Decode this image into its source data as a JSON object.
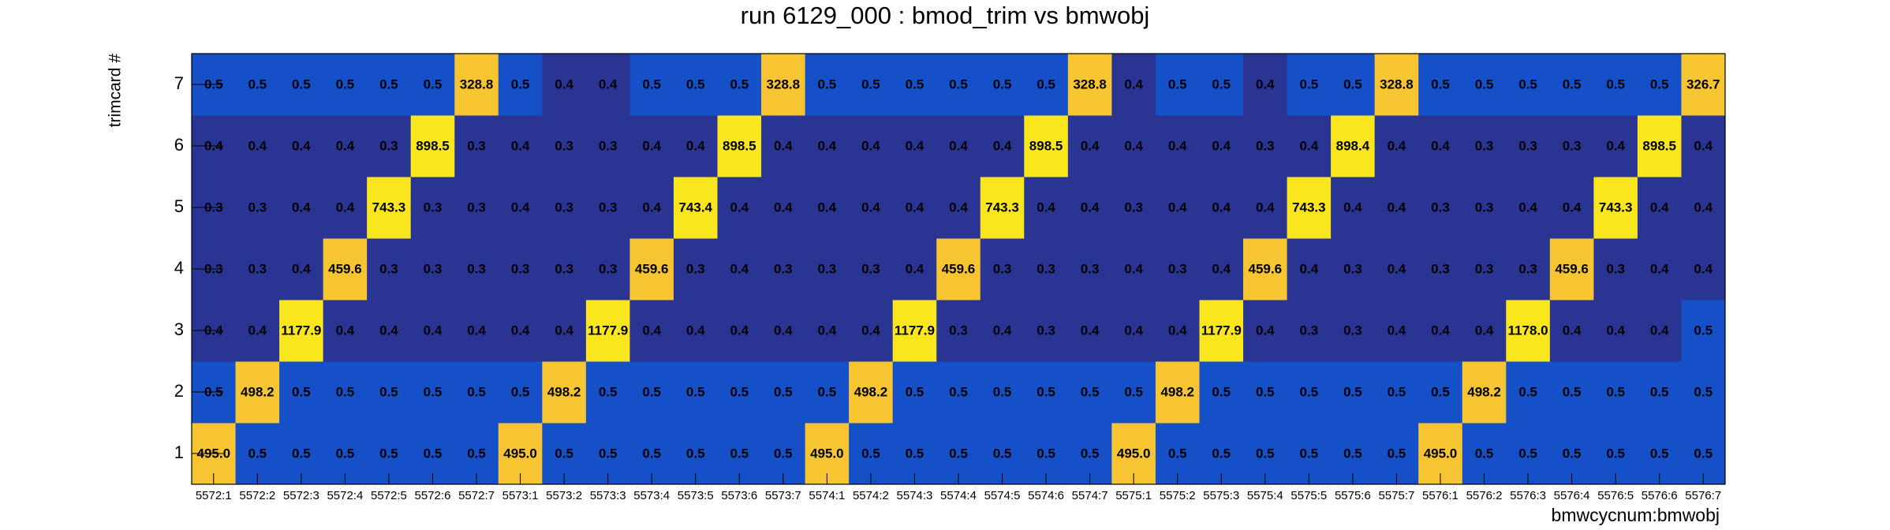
{
  "chart_data": {
    "type": "heatmap",
    "title": "run 6129_000 : bmod_trim vs bmwobj",
    "x_label": "bmwcycnum:bmwobj",
    "y_label": "trimcard #",
    "x_categories": [
      "5572:1",
      "5572:2",
      "5572:3",
      "5572:4",
      "5572:5",
      "5572:6",
      "5572:7",
      "5573:1",
      "5573:2",
      "5573:3",
      "5573:4",
      "5573:5",
      "5573:6",
      "5573:7",
      "5574:1",
      "5574:2",
      "5574:3",
      "5574:4",
      "5574:5",
      "5574:6",
      "5574:7",
      "5575:1",
      "5575:2",
      "5575:3",
      "5575:4",
      "5575:5",
      "5575:6",
      "5575:7",
      "5576:1",
      "5576:2",
      "5576:3",
      "5576:4",
      "5576:5",
      "5576:6",
      "5576:7"
    ],
    "y_categories": [
      "1",
      "2",
      "3",
      "4",
      "5",
      "6",
      "7"
    ],
    "values": [
      [
        495.0,
        0.5,
        0.5,
        0.5,
        0.5,
        0.5,
        0.5,
        495.0,
        0.5,
        0.5,
        0.5,
        0.5,
        0.5,
        0.5,
        495.0,
        0.5,
        0.5,
        0.5,
        0.5,
        0.5,
        0.5,
        495.0,
        0.5,
        0.5,
        0.5,
        0.5,
        0.5,
        0.5,
        495.0,
        0.5,
        0.5,
        0.5,
        0.5,
        0.5,
        0.5
      ],
      [
        0.5,
        498.2,
        0.5,
        0.5,
        0.5,
        0.5,
        0.5,
        0.5,
        498.2,
        0.5,
        0.5,
        0.5,
        0.5,
        0.5,
        0.5,
        498.2,
        0.5,
        0.5,
        0.5,
        0.5,
        0.5,
        0.5,
        498.2,
        0.5,
        0.5,
        0.5,
        0.5,
        0.5,
        0.5,
        498.2,
        0.5,
        0.5,
        0.5,
        0.5,
        0.5
      ],
      [
        0.4,
        0.4,
        1177.9,
        0.4,
        0.4,
        0.4,
        0.4,
        0.4,
        0.4,
        1177.9,
        0.4,
        0.4,
        0.4,
        0.4,
        0.4,
        0.4,
        1177.9,
        0.3,
        0.4,
        0.3,
        0.4,
        0.4,
        0.4,
        1177.9,
        0.4,
        0.3,
        0.3,
        0.4,
        0.4,
        0.4,
        1178.0,
        0.4,
        0.4,
        0.4,
        0.5
      ],
      [
        0.3,
        0.3,
        0.4,
        459.6,
        0.3,
        0.3,
        0.3,
        0.3,
        0.3,
        0.3,
        459.6,
        0.3,
        0.4,
        0.3,
        0.3,
        0.3,
        0.4,
        459.6,
        0.3,
        0.3,
        0.3,
        0.4,
        0.3,
        0.4,
        459.6,
        0.4,
        0.3,
        0.4,
        0.3,
        0.3,
        0.3,
        459.6,
        0.3,
        0.4,
        0.4
      ],
      [
        0.3,
        0.3,
        0.4,
        0.4,
        743.3,
        0.3,
        0.3,
        0.4,
        0.3,
        0.3,
        0.4,
        743.4,
        0.4,
        0.4,
        0.4,
        0.4,
        0.4,
        0.4,
        743.3,
        0.4,
        0.4,
        0.3,
        0.4,
        0.4,
        0.4,
        743.3,
        0.4,
        0.4,
        0.3,
        0.3,
        0.4,
        0.4,
        743.3,
        0.4,
        0.4
      ],
      [
        0.4,
        0.4,
        0.4,
        0.4,
        0.3,
        898.5,
        0.3,
        0.4,
        0.3,
        0.3,
        0.4,
        0.4,
        898.5,
        0.4,
        0.4,
        0.4,
        0.4,
        0.4,
        0.4,
        898.5,
        0.4,
        0.4,
        0.4,
        0.4,
        0.3,
        0.4,
        898.4,
        0.4,
        0.4,
        0.3,
        0.3,
        0.3,
        0.4,
        898.5,
        0.4
      ],
      [
        0.5,
        0.5,
        0.5,
        0.5,
        0.5,
        0.5,
        328.8,
        0.5,
        0.4,
        0.4,
        0.5,
        0.5,
        0.5,
        328.8,
        0.5,
        0.5,
        0.5,
        0.5,
        0.5,
        0.5,
        328.8,
        0.4,
        0.5,
        0.5,
        0.4,
        0.5,
        0.5,
        328.8,
        0.5,
        0.5,
        0.5,
        0.5,
        0.5,
        0.5,
        326.7
      ]
    ],
    "value_labels": [
      [
        "495.0",
        "0.5",
        "0.5",
        "0.5",
        "0.5",
        "0.5",
        "0.5",
        "495.0",
        "0.5",
        "0.5",
        "0.5",
        "0.5",
        "0.5",
        "0.5",
        "495.0",
        "0.5",
        "0.5",
        "0.5",
        "0.5",
        "0.5",
        "0.5",
        "495.0",
        "0.5",
        "0.5",
        "0.5",
        "0.5",
        "0.5",
        "0.5",
        "495.0",
        "0.5",
        "0.5",
        "0.5",
        "0.5",
        "0.5",
        "0.5"
      ],
      [
        "0.5",
        "498.2",
        "0.5",
        "0.5",
        "0.5",
        "0.5",
        "0.5",
        "0.5",
        "498.2",
        "0.5",
        "0.5",
        "0.5",
        "0.5",
        "0.5",
        "0.5",
        "498.2",
        "0.5",
        "0.5",
        "0.5",
        "0.5",
        "0.5",
        "0.5",
        "498.2",
        "0.5",
        "0.5",
        "0.5",
        "0.5",
        "0.5",
        "0.5",
        "498.2",
        "0.5",
        "0.5",
        "0.5",
        "0.5",
        "0.5"
      ],
      [
        "0.4",
        "0.4",
        "1177.9",
        "0.4",
        "0.4",
        "0.4",
        "0.4",
        "0.4",
        "0.4",
        "1177.9",
        "0.4",
        "0.4",
        "0.4",
        "0.4",
        "0.4",
        "0.4",
        "1177.9",
        "0.3",
        "0.4",
        "0.3",
        "0.4",
        "0.4",
        "0.4",
        "1177.9",
        "0.4",
        "0.3",
        "0.3",
        "0.4",
        "0.4",
        "0.4",
        "1178.0",
        "0.4",
        "0.4",
        "0.4",
        "0.5"
      ],
      [
        "0.3",
        "0.3",
        "0.4",
        "459.6",
        "0.3",
        "0.3",
        "0.3",
        "0.3",
        "0.3",
        "0.3",
        "459.6",
        "0.3",
        "0.4",
        "0.3",
        "0.3",
        "0.3",
        "0.4",
        "459.6",
        "0.3",
        "0.3",
        "0.3",
        "0.4",
        "0.3",
        "0.4",
        "459.6",
        "0.4",
        "0.3",
        "0.4",
        "0.3",
        "0.3",
        "0.3",
        "459.6",
        "0.3",
        "0.4",
        "0.4"
      ],
      [
        "0.3",
        "0.3",
        "0.4",
        "0.4",
        "743.3",
        "0.3",
        "0.3",
        "0.4",
        "0.3",
        "0.3",
        "0.4",
        "743.4",
        "0.4",
        "0.4",
        "0.4",
        "0.4",
        "0.4",
        "0.4",
        "743.3",
        "0.4",
        "0.4",
        "0.3",
        "0.4",
        "0.4",
        "0.4",
        "743.3",
        "0.4",
        "0.4",
        "0.3",
        "0.3",
        "0.4",
        "0.4",
        "743.3",
        "0.4",
        "0.4"
      ],
      [
        "0.4",
        "0.4",
        "0.4",
        "0.4",
        "0.3",
        "898.5",
        "0.3",
        "0.4",
        "0.3",
        "0.3",
        "0.4",
        "0.4",
        "898.5",
        "0.4",
        "0.4",
        "0.4",
        "0.4",
        "0.4",
        "0.4",
        "898.5",
        "0.4",
        "0.4",
        "0.4",
        "0.4",
        "0.3",
        "0.4",
        "898.4",
        "0.4",
        "0.4",
        "0.3",
        "0.3",
        "0.3",
        "0.4",
        "898.5",
        "0.4"
      ],
      [
        "0.5",
        "0.5",
        "0.5",
        "0.5",
        "0.5",
        "0.5",
        "328.8",
        "0.5",
        "0.4",
        "0.4",
        "0.5",
        "0.5",
        "0.5",
        "328.8",
        "0.5",
        "0.5",
        "0.5",
        "0.5",
        "0.5",
        "0.5",
        "328.8",
        "0.4",
        "0.5",
        "0.5",
        "0.4",
        "0.5",
        "0.5",
        "328.8",
        "0.5",
        "0.5",
        "0.5",
        "0.5",
        "0.5",
        "0.5",
        "326.7"
      ]
    ],
    "color_scale": {
      "bounds": [
        0.45,
        1,
        700
      ],
      "colors": [
        "#2a3593",
        "#1650c8",
        "#f6c531",
        "#f9e61c"
      ]
    }
  }
}
